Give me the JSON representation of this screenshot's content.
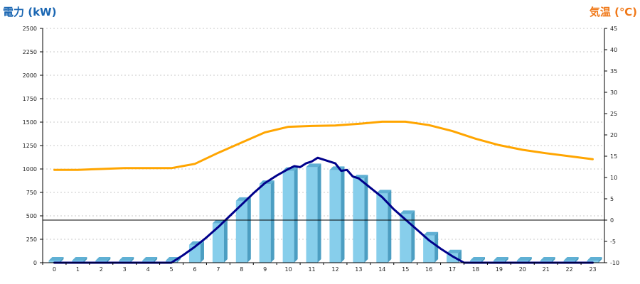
{
  "chart_data": {
    "type": "bar",
    "left_axis_title": "電力 (kW)",
    "right_axis_title": "気温 (℃)",
    "colors": {
      "left_title": "#1a66b2",
      "right_title": "#f07818",
      "bars": "#87ceeb",
      "bar_side": "#4c9ec2",
      "bar_top": "#5fb0d4",
      "power_line": "#00008b",
      "temperature_line": "#ffa500",
      "grid": "#c8c8c8"
    },
    "grid": true,
    "x": [
      "0",
      "1",
      "2",
      "3",
      "4",
      "5",
      "6",
      "7",
      "8",
      "9",
      "10",
      "11",
      "12",
      "13",
      "14",
      "15",
      "16",
      "17",
      "18",
      "19",
      "20",
      "21",
      "22",
      "23"
    ],
    "left_axis": {
      "ylim": [
        0,
        2500
      ],
      "ticks": [
        "0",
        "250",
        "500",
        "750",
        "1000",
        "1250",
        "1500",
        "1750",
        "2000",
        "2250",
        "2500"
      ]
    },
    "right_axis": {
      "ylim": [
        -10,
        45
      ],
      "ticks": [
        "-10",
        "-5",
        "0",
        "5",
        "10",
        "15",
        "20",
        "25",
        "30",
        "35",
        "40",
        "45"
      ]
    },
    "series": [
      {
        "axis": "left",
        "kind": "bar",
        "values": [
          0,
          0,
          0,
          0,
          0,
          0,
          190,
          420,
          660,
          840,
          980,
          1020,
          990,
          900,
          740,
          520,
          290,
          100,
          0,
          0,
          0,
          0,
          0,
          0
        ]
      },
      {
        "axis": "left",
        "kind": "line",
        "points": [
          [
            0,
            0
          ],
          [
            5,
            0
          ],
          [
            5.5,
            80
          ],
          [
            6,
            170
          ],
          [
            6.5,
            270
          ],
          [
            7,
            380
          ],
          [
            7.5,
            500
          ],
          [
            8,
            620
          ],
          [
            8.5,
            740
          ],
          [
            9,
            850
          ],
          [
            9.5,
            930
          ],
          [
            10,
            1000
          ],
          [
            10.25,
            1030
          ],
          [
            10.5,
            1020
          ],
          [
            10.75,
            1060
          ],
          [
            11,
            1080
          ],
          [
            11.25,
            1120
          ],
          [
            11.5,
            1100
          ],
          [
            11.75,
            1080
          ],
          [
            12,
            1060
          ],
          [
            12.25,
            980
          ],
          [
            12.5,
            990
          ],
          [
            12.75,
            920
          ],
          [
            13,
            900
          ],
          [
            13.25,
            850
          ],
          [
            13.5,
            800
          ],
          [
            14,
            700
          ],
          [
            14.5,
            570
          ],
          [
            15,
            460
          ],
          [
            15.5,
            350
          ],
          [
            16,
            240
          ],
          [
            16.5,
            150
          ],
          [
            17,
            70
          ],
          [
            17.5,
            0
          ],
          [
            23,
            0
          ]
        ]
      },
      {
        "axis": "right",
        "kind": "line",
        "points": [
          [
            0,
            11.8
          ],
          [
            1,
            11.8
          ],
          [
            2,
            12
          ],
          [
            3,
            12.2
          ],
          [
            4,
            12.2
          ],
          [
            5,
            12.2
          ],
          [
            6,
            13.2
          ],
          [
            7,
            15.8
          ],
          [
            8,
            18.2
          ],
          [
            9,
            20.6
          ],
          [
            10,
            21.9
          ],
          [
            11,
            22.1
          ],
          [
            12,
            22.2
          ],
          [
            13,
            22.6
          ],
          [
            14,
            23.1
          ],
          [
            15,
            23.1
          ],
          [
            16,
            22.3
          ],
          [
            17,
            20.9
          ],
          [
            18,
            19.1
          ],
          [
            19,
            17.6
          ],
          [
            20,
            16.5
          ],
          [
            21,
            15.7
          ],
          [
            22,
            15
          ],
          [
            23,
            14.3
          ]
        ]
      }
    ]
  }
}
